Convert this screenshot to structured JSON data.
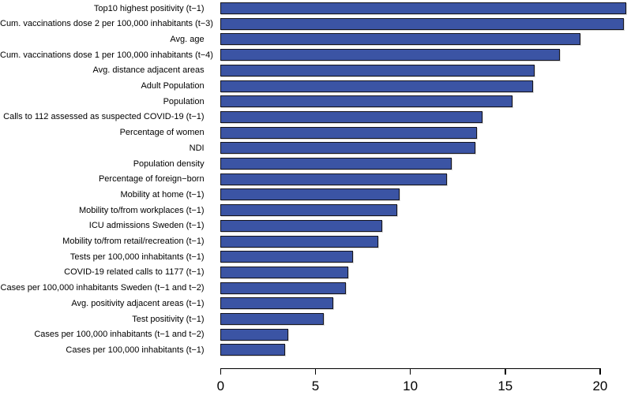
{
  "chart_data": {
    "type": "bar",
    "orientation": "horizontal",
    "title": "",
    "xlabel": "",
    "ylabel": "",
    "xlim": [
      0,
      21.5
    ],
    "x_ticks": [
      0,
      5,
      10,
      15,
      20
    ],
    "x_tick_labels": [
      "0",
      "5",
      "10",
      "15",
      "20"
    ],
    "grid": false,
    "legend": null,
    "bar_fill_color": "#3b54a4",
    "bar_border_color": "#14141e",
    "axis_color": "#000000",
    "categories": [
      "Top10 highest positivity (t−1)",
      "Cum. vaccinations dose 2 per 100,000 inhabitants (t−3)",
      "Avg. age",
      "Cum. vaccinations dose 1 per 100,000 inhabitants (t−4)",
      "Avg. distance adjacent areas",
      "Adult Population",
      "Population",
      "Calls to 112 assessed as suspected COVID-19 (t−1)",
      "Percentage of women",
      "NDI",
      "Population density",
      "Percentage of foreign−born",
      "Mobility at home (t−1)",
      "Mobility to/from workplaces (t−1)",
      "ICU admissions Sweden (t−1)",
      "Mobility to/from retail/recreation (t−1)",
      "Tests per 100,000 inhabitants (t−1)",
      "COVID-19 related calls to 1177 (t−1)",
      "Cases per 100,000 inhabitants Sweden (t−1 and t−2)",
      "Avg. positivity adjacent areas (t−1)",
      "Test positivity (t−1)",
      "Cases per 100,000 inhabitants (t−1 and t−2)",
      "Cases per 100,000 inhabitants (t−1)"
    ],
    "values": [
      21.4,
      21.3,
      19.0,
      17.9,
      16.6,
      16.5,
      15.4,
      13.85,
      13.55,
      13.45,
      12.2,
      11.95,
      9.45,
      9.35,
      8.55,
      8.35,
      7.0,
      6.75,
      6.65,
      5.95,
      5.45,
      3.6,
      3.45
    ]
  }
}
